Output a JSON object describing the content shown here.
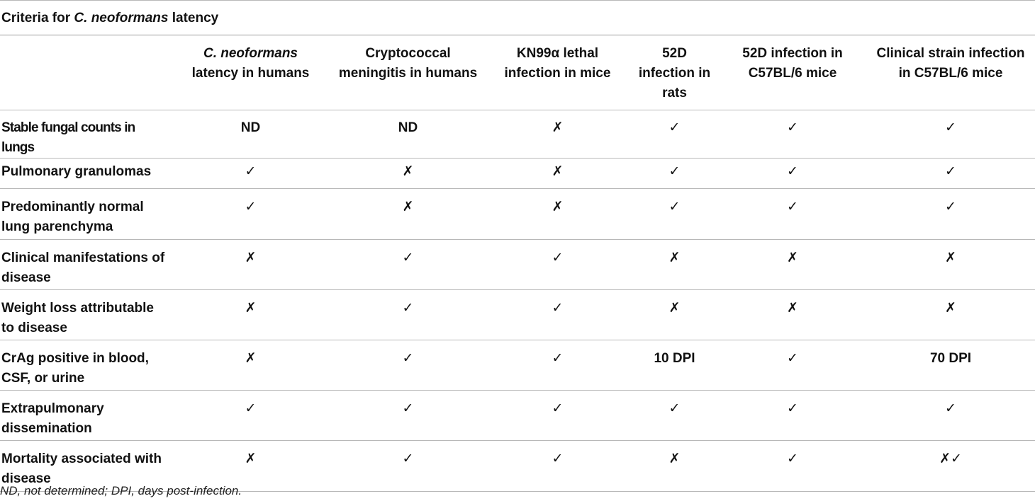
{
  "caption": {
    "prefix": "Criteria for ",
    "species": "C. neoformans",
    "suffix": " latency"
  },
  "columns": [
    {
      "line1_italic": "C. neoformans",
      "line1_rest": "",
      "lines": [
        "latency in humans"
      ]
    },
    {
      "line1_italic": "",
      "line1_rest": "Cryptococcal",
      "lines": [
        "meningitis in humans"
      ]
    },
    {
      "line1_italic": "",
      "line1_rest": "KN99α lethal",
      "lines": [
        "infection in mice"
      ]
    },
    {
      "line1_italic": "",
      "line1_rest": "52D",
      "lines": [
        "infection in",
        "rats"
      ]
    },
    {
      "line1_italic": "",
      "line1_rest": "52D infection in",
      "lines": [
        "C57BL/6 mice"
      ]
    },
    {
      "line1_italic": "",
      "line1_rest": "Clinical strain infection",
      "lines": [
        "in C57BL/6 mice"
      ]
    }
  ],
  "rows": [
    {
      "label": "Stable fungal counts in lungs",
      "values": [
        "ND",
        "ND",
        "✗",
        "✓",
        "✓",
        "✓"
      ]
    },
    {
      "label": "Pulmonary granulomas",
      "values": [
        "✓",
        "✗",
        "✗",
        "✓",
        "✓",
        "✓"
      ]
    },
    {
      "label": "Predominantly normal lung parenchyma",
      "values": [
        "✓",
        "✗",
        "✗",
        "✓",
        "✓",
        "✓"
      ]
    },
    {
      "label": "Clinical manifestations of disease",
      "values": [
        "✗",
        "✓",
        "✓",
        "✗",
        "✗",
        "✗"
      ]
    },
    {
      "label": "Weight loss attributable to disease",
      "values": [
        "✗",
        "✓",
        "✓",
        "✗",
        "✗",
        "✗"
      ]
    },
    {
      "label": "CrAg positive in blood, CSF, or urine",
      "values": [
        "✗",
        "✓",
        "✓",
        "10 DPI",
        "✓",
        "70 DPI"
      ]
    },
    {
      "label": "Extrapulmonary dissemination",
      "values": [
        "✓",
        "✓",
        "✓",
        "✓",
        "✓",
        "✓"
      ]
    },
    {
      "label": "Mortality associated with disease",
      "values": [
        "✗",
        "✓",
        "✓",
        "✗",
        "✓",
        "✗✓"
      ]
    }
  ],
  "footnote": "ND, not determined; DPI, days post-infection."
}
